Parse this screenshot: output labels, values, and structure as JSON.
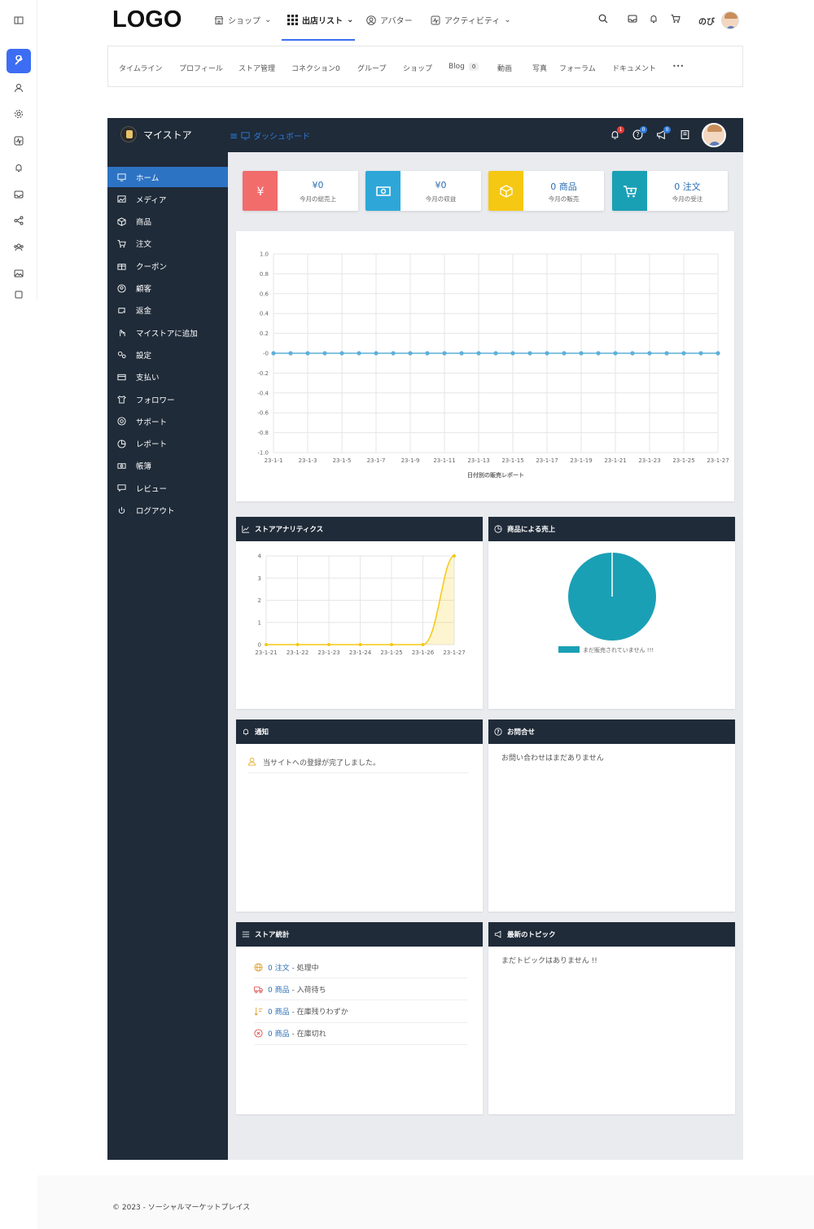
{
  "topnav": {
    "logo": "LOGO",
    "items": [
      {
        "label": "ショップ",
        "icon": "store-icon"
      },
      {
        "label": "出店リスト",
        "icon": "grid-icon"
      },
      {
        "label": "アバター",
        "icon": "avatar-icon"
      },
      {
        "label": "アクティビティ",
        "icon": "activity-icon"
      }
    ],
    "user_name": "のび"
  },
  "subnav": {
    "items": [
      "タイムライン",
      "プロフィール",
      "ストア管理",
      "コネクション0",
      "グループ",
      "ショップ",
      "Blog",
      "動画",
      "写真",
      "フォーラム",
      "ドキュメント"
    ],
    "blog_badge": "0",
    "more": "•••"
  },
  "dashboard": {
    "store_name": "マイストア",
    "breadcrumb": "ダッシュボード",
    "header_badges": {
      "notifications": "1",
      "help": "0",
      "announcements": "0"
    }
  },
  "sidebar": {
    "items": [
      {
        "label": "ホーム",
        "icon": "monitor-icon"
      },
      {
        "label": "メディア",
        "icon": "image-icon"
      },
      {
        "label": "商品",
        "icon": "box-icon"
      },
      {
        "label": "注文",
        "icon": "cart-icon"
      },
      {
        "label": "クーポン",
        "icon": "gift-icon"
      },
      {
        "label": "顧客",
        "icon": "user-circle-icon"
      },
      {
        "label": "返金",
        "icon": "refund-icon"
      },
      {
        "label": "マイストアに追加",
        "icon": "hand-icon"
      },
      {
        "label": "設定",
        "icon": "gears-icon"
      },
      {
        "label": "支払い",
        "icon": "card-icon"
      },
      {
        "label": "フォロワー",
        "icon": "shirt-icon"
      },
      {
        "label": "サポート",
        "icon": "lifebuoy-icon"
      },
      {
        "label": "レポート",
        "icon": "pie-icon"
      },
      {
        "label": "帳簿",
        "icon": "money-icon"
      },
      {
        "label": "レビュー",
        "icon": "comment-icon"
      },
      {
        "label": "ログアウト",
        "icon": "power-icon"
      }
    ]
  },
  "stats": [
    {
      "value": "¥0",
      "label": "今月の総売上",
      "color": "#f26c6c",
      "icon": "yen-icon"
    },
    {
      "value": "¥0",
      "label": "今月の収益",
      "color": "#2ea7d8",
      "icon": "cash-icon"
    },
    {
      "value": "0 商品",
      "label": "今月の販売",
      "color": "#f5c814",
      "icon": "box-icon"
    },
    {
      "value": "0 注文",
      "label": "今月の受注",
      "color": "#1aa0b5",
      "icon": "cart-icon"
    }
  ],
  "panels": {
    "analytics": "ストアアナリティクス",
    "sales_by_product": "商品による売上",
    "notice": "通知",
    "inquiry": "お問合せ",
    "store_stats": "ストア統計",
    "topics": "最新のトピック"
  },
  "notice_item": "当サイトへの登録が完了しました。",
  "inquiry_empty": "お問い合わせはまだありません",
  "topics_empty": "まだトピックはありません !!",
  "store_stats": [
    {
      "count": "0 注文",
      "desc": " - 処理中",
      "icon": "globe-icon",
      "color": "#e0a030"
    },
    {
      "count": "0 商品",
      "desc": " - 入荷待ち",
      "icon": "truck-icon",
      "color": "#e06060"
    },
    {
      "count": "0 商品",
      "desc": " - 在庫残りわずか",
      "icon": "sort-down-icon",
      "color": "#e0a030"
    },
    {
      "count": "0 商品",
      "desc": " - 在庫切れ",
      "icon": "x-circle-icon",
      "color": "#e05050"
    }
  ],
  "footer": {
    "copyright": "© 2023 - ソーシャルマーケットプレイス"
  },
  "chart_data": [
    {
      "type": "line",
      "title": "",
      "xlabel": "日付別の販売レポート",
      "ylabel": "",
      "x": [
        "23-1-1",
        "23-1-2",
        "23-1-3",
        "23-1-4",
        "23-1-5",
        "23-1-6",
        "23-1-7",
        "23-1-8",
        "23-1-9",
        "23-1-10",
        "23-1-11",
        "23-1-12",
        "23-1-13",
        "23-1-14",
        "23-1-15",
        "23-1-16",
        "23-1-17",
        "23-1-18",
        "23-1-19",
        "23-1-20",
        "23-1-21",
        "23-1-22",
        "23-1-23",
        "23-1-24",
        "23-1-25",
        "23-1-26",
        "23-1-27"
      ],
      "x_tick_labels": [
        "23-1-1",
        "23-1-3",
        "23-1-5",
        "23-1-7",
        "23-1-9",
        "23-1-11",
        "23-1-13",
        "23-1-15",
        "23-1-17",
        "23-1-19",
        "23-1-21",
        "23-1-23",
        "23-1-25",
        "23-1-27"
      ],
      "series": [
        {
          "values": [
            0,
            0,
            0,
            0,
            0,
            0,
            0,
            0,
            0,
            0,
            0,
            0,
            0,
            0,
            0,
            0,
            0,
            0,
            0,
            0,
            0,
            0,
            0,
            0,
            0,
            0,
            0
          ],
          "color": "#5fb0d8"
        }
      ],
      "ylim": [
        -1.0,
        1.0
      ],
      "y_ticks": [
        "1.0",
        "0.8",
        "0.6",
        "0.4",
        "0.2",
        "-0",
        "-0.2",
        "-0.4",
        "-0.6",
        "-0.8",
        "-1.0"
      ],
      "grid": true
    },
    {
      "type": "area",
      "title": "",
      "x": [
        "23-1-21",
        "23-1-22",
        "23-1-23",
        "23-1-24",
        "23-1-25",
        "23-1-26",
        "23-1-27"
      ],
      "series": [
        {
          "values": [
            0,
            0,
            0,
            0,
            0,
            0,
            4
          ],
          "color": "#f5c814"
        }
      ],
      "ylim": [
        0,
        4
      ],
      "y_ticks": [
        "0",
        "1",
        "2",
        "3",
        "4"
      ],
      "grid": true
    },
    {
      "type": "pie",
      "labels": [
        "まだ販売されていません !!!"
      ],
      "values": [
        1
      ],
      "colors": [
        "#1aa0b5"
      ],
      "legend": "bottom"
    }
  ]
}
